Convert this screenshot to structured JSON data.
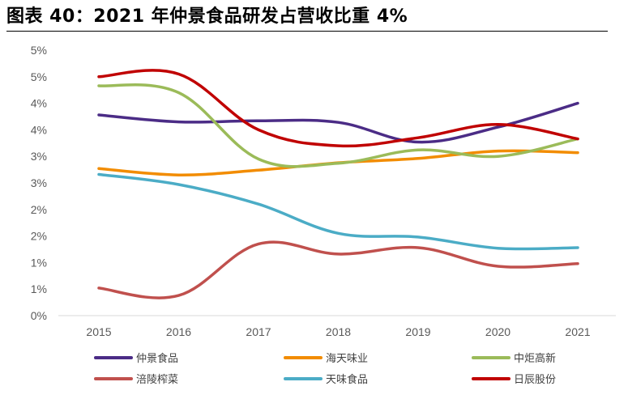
{
  "title": "图表 40：2021 年仲景食品研发占营收比重 4%",
  "chart_data": {
    "type": "line",
    "title": "图表 40：2021 年仲景食品研发占营收比重 4%",
    "categories": [
      "2015",
      "2016",
      "2017",
      "2018",
      "2019",
      "2020",
      "2021"
    ],
    "y_tick_labels": [
      "0%",
      "1%",
      "1%",
      "2%",
      "2%",
      "3%",
      "3%",
      "4%",
      "4%",
      "5%",
      "5%"
    ],
    "ylim": [
      0,
      5
    ],
    "series": [
      {
        "name": "仲景食品",
        "color": "#4B2C86",
        "values": [
          3.78,
          3.65,
          3.67,
          3.64,
          3.27,
          3.55,
          4.0
        ]
      },
      {
        "name": "海天味业",
        "color": "#F28C00",
        "values": [
          2.77,
          2.65,
          2.74,
          2.88,
          2.96,
          3.1,
          3.07
        ]
      },
      {
        "name": "中炬高新",
        "color": "#9BBB59",
        "values": [
          4.33,
          4.2,
          2.95,
          2.87,
          3.12,
          3.0,
          3.33
        ]
      },
      {
        "name": "涪陵榨菜",
        "color": "#C0504D",
        "values": [
          0.52,
          0.38,
          1.35,
          1.16,
          1.28,
          0.93,
          0.98
        ]
      },
      {
        "name": "天味食品",
        "color": "#4BACC6",
        "values": [
          2.66,
          2.47,
          2.1,
          1.55,
          1.48,
          1.27,
          1.28
        ]
      },
      {
        "name": "日辰股份",
        "color": "#C00000",
        "values": [
          4.5,
          4.55,
          3.5,
          3.2,
          3.35,
          3.6,
          3.33
        ]
      }
    ]
  }
}
